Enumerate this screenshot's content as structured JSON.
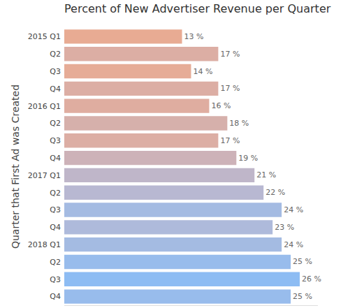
{
  "chart_data": {
    "type": "bar",
    "orientation": "horizontal",
    "title": "Percent of New Advertiser Revenue per Quarter",
    "y_label": "Quarter that First Ad was Created",
    "categories": [
      "2015 Q1",
      "Q2",
      "Q3",
      "Q4",
      "2016 Q1",
      "Q2",
      "Q3",
      "Q4",
      "2017 Q1",
      "Q2",
      "Q3",
      "Q4",
      "2018 Q1",
      "Q2",
      "Q3",
      "Q4"
    ],
    "values": [
      13,
      17,
      14,
      17,
      16,
      18,
      17,
      19,
      21,
      22,
      24,
      23,
      24,
      25,
      26,
      25
    ],
    "value_labels": [
      "13 %",
      "17 %",
      "14 %",
      "17 %",
      "16 %",
      "18 %",
      "17 %",
      "19 %",
      "21 %",
      "22 %",
      "24 %",
      "23 %",
      "24 %",
      "25 %",
      "26 %",
      "25 %"
    ],
    "colors": [
      "#e8ab93",
      "#dcaea4",
      "#e6ac97",
      "#dcaea4",
      "#dfada0",
      "#d6b0ab",
      "#dcaea4",
      "#cdb2b8",
      "#bfb6c9",
      "#b8b8d2",
      "#a4bbe2",
      "#aebadb",
      "#a4bbe2",
      "#98bcec",
      "#8dbcf3",
      "#98bcec"
    ],
    "xlim": [
      0,
      28
    ],
    "data_labels": true,
    "tick_labels": "y",
    "grid": false
  }
}
